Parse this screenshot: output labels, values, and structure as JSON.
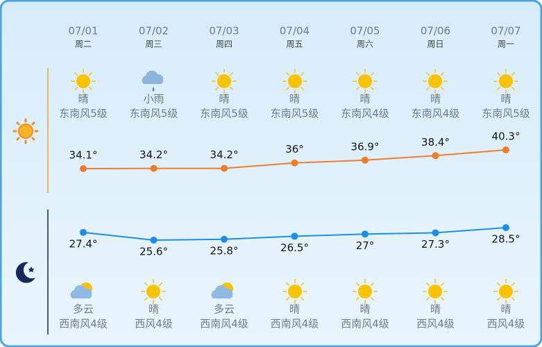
{
  "days": [
    {
      "date": "07/01",
      "weekday": "周二",
      "day_weather": "晴",
      "day_wind": "东南风5级",
      "night_weather": "多云",
      "night_wind": "西南风4级"
    },
    {
      "date": "07/02",
      "weekday": "周三",
      "day_weather": "小雨",
      "day_wind": "东南风5级",
      "night_weather": "晴",
      "night_wind": "西风4级"
    },
    {
      "date": "07/03",
      "weekday": "周四",
      "day_weather": "晴",
      "day_wind": "东南风5级",
      "night_weather": "多云",
      "night_wind": "西南风4级"
    },
    {
      "date": "07/04",
      "weekday": "周五",
      "day_weather": "晴",
      "day_wind": "东南风5级",
      "night_weather": "晴",
      "night_wind": "西南风4级"
    },
    {
      "date": "07/05",
      "weekday": "周六",
      "day_weather": "晴",
      "day_wind": "东南风4级",
      "night_weather": "晴",
      "night_wind": "西南风4级"
    },
    {
      "date": "07/06",
      "weekday": "周日",
      "day_weather": "晴",
      "day_wind": "东南风4级",
      "night_weather": "晴",
      "night_wind": "西风4级"
    },
    {
      "date": "07/07",
      "weekday": "周一",
      "day_weather": "晴",
      "day_wind": "东南风5级",
      "night_weather": "晴",
      "night_wind": "西风4级"
    }
  ],
  "chart_data": [
    {
      "type": "line",
      "color": "#f07c2a",
      "values": [
        34.1,
        34.2,
        34.2,
        36,
        36.9,
        38.4,
        40.3
      ],
      "value_labels": [
        "34.1°",
        "34.2°",
        "34.2°",
        "36°",
        "36.9°",
        "38.4°",
        "40.3°"
      ]
    },
    {
      "type": "line",
      "color": "#1b8ee8",
      "values": [
        27.4,
        25.6,
        25.8,
        26.5,
        27,
        27.3,
        28.5
      ],
      "value_labels": [
        "27.4°",
        "25.6°",
        "25.8°",
        "26.5°",
        "27°",
        "27.3°",
        "28.5°"
      ]
    }
  ]
}
